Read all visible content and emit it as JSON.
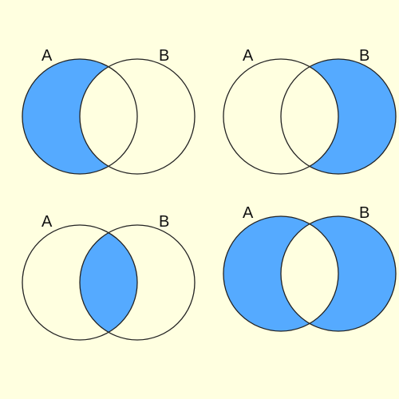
{
  "diagrams": [
    {
      "labels": [
        "A",
        "B"
      ]
    },
    {
      "labels": [
        "A",
        "B"
      ]
    },
    {
      "labels": [
        "A",
        "B"
      ]
    },
    {
      "labels": [
        "A",
        "B"
      ]
    }
  ]
}
